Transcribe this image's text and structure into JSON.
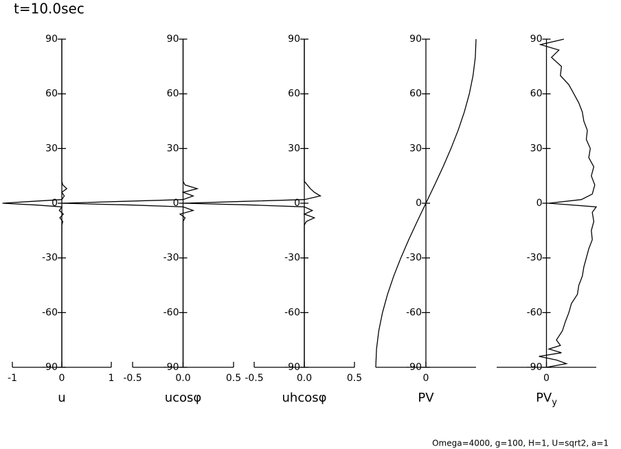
{
  "title": "t=10.0sec",
  "footnote": "Omega=4000, g=100, H=1, U=sqrt2, a=1",
  "chart_data": [
    {
      "type": "line",
      "xlabel": "u",
      "xlim": [
        -1,
        1
      ],
      "xticks": [
        -1,
        0,
        1
      ],
      "ylim": [
        -90,
        90
      ],
      "yticks": [
        -90,
        -60,
        -30,
        0,
        30,
        60,
        90
      ],
      "series": [
        {
          "color": "#000000",
          "lat": [
            90,
            30,
            12,
            10,
            8,
            6,
            4,
            2,
            1,
            0,
            -1,
            -2,
            -4,
            -6,
            -8,
            -10,
            -12,
            -30,
            -90
          ],
          "values": [
            0,
            0,
            0,
            0.02,
            0.1,
            0,
            0.05,
            0,
            -0.6,
            -1.2,
            -0.5,
            0,
            -0.05,
            0.03,
            -0.04,
            0.02,
            0,
            0,
            0
          ]
        }
      ]
    },
    {
      "type": "line",
      "xlabel": "ucosφ",
      "xlim": [
        -0.5,
        0.5
      ],
      "xticks": [
        -0.5,
        {
          "value": 0,
          "label": "0.0"
        },
        0.5
      ],
      "ylim": [
        -90,
        90
      ],
      "yticks": [
        -90,
        -60,
        -30,
        0,
        30,
        60,
        90
      ],
      "series": [
        {
          "color": "#000000",
          "lat": [
            90,
            30,
            12,
            10,
            8,
            6,
            4,
            2,
            1,
            0,
            -1,
            -2,
            -4,
            -6,
            -8,
            -10,
            -12,
            -30,
            -90
          ],
          "values": [
            0,
            0,
            0,
            0.02,
            0.14,
            0,
            0.1,
            0,
            -0.6,
            -1.2,
            -0.5,
            0,
            0.1,
            -0.03,
            0.02,
            0,
            0,
            0,
            0
          ]
        }
      ]
    },
    {
      "type": "line",
      "xlabel": "uhcosφ",
      "xlim": [
        -0.5,
        0.5
      ],
      "xticks": [
        -0.5,
        {
          "value": 0,
          "label": "0.0"
        },
        0.5
      ],
      "ylim": [
        -90,
        90
      ],
      "yticks": [
        -90,
        -60,
        -30,
        0,
        30,
        60,
        90
      ],
      "series": [
        {
          "color": "#000000",
          "lat": [
            90,
            30,
            12,
            10,
            8,
            6,
            4,
            2,
            1,
            0,
            -1,
            -2,
            -4,
            -6,
            -8,
            -10,
            -12,
            -30,
            -90
          ],
          "values": [
            0,
            0,
            0,
            0.03,
            0.06,
            0.1,
            0.16,
            0,
            -0.6,
            -1.2,
            -0.5,
            0,
            0.08,
            0,
            0.1,
            0.02,
            0,
            0,
            0
          ]
        }
      ]
    },
    {
      "type": "line",
      "xlabel": "PV",
      "xlim": [
        -1,
        1
      ],
      "xticks": [
        0
      ],
      "ylim": [
        -90,
        90
      ],
      "yticks": [
        -90,
        -60,
        -30,
        0,
        30,
        60,
        90
      ],
      "series": [
        {
          "color": "#000000",
          "lat": [
            90,
            80,
            70,
            60,
            50,
            40,
            30,
            20,
            10,
            0,
            -10,
            -20,
            -30,
            -40,
            -50,
            -60,
            -70,
            -80,
            -90
          ],
          "values": [
            1,
            0.985,
            0.94,
            0.866,
            0.766,
            0.643,
            0.5,
            0.342,
            0.174,
            0,
            -0.174,
            -0.342,
            -0.5,
            -0.643,
            -0.766,
            -0.866,
            -0.94,
            -0.985,
            -1
          ]
        }
      ]
    },
    {
      "type": "line",
      "xlabel": "PV",
      "xlabel_subscript": "y",
      "xlim": [
        -1,
        1
      ],
      "xticks": [
        0
      ],
      "ylim": [
        -90,
        90
      ],
      "yticks": [
        -90,
        -60,
        -30,
        0,
        30,
        60,
        90
      ],
      "series": [
        {
          "color": "#000000",
          "lat": [
            90,
            87,
            84,
            80,
            75,
            70,
            65,
            60,
            55,
            50,
            45,
            40,
            35,
            30,
            25,
            20,
            15,
            10,
            5,
            2,
            0,
            -2,
            -5,
            -10,
            -15,
            -20,
            -25,
            -30,
            -35,
            -40,
            -45,
            -50,
            -55,
            -60,
            -65,
            -70,
            -75,
            -78,
            -80,
            -82,
            -84,
            -86,
            -88,
            -90
          ],
          "values": [
            0.35,
            -0.12,
            0.25,
            0.1,
            0.3,
            0.28,
            0.45,
            0.55,
            0.65,
            0.72,
            0.75,
            0.82,
            0.8,
            0.88,
            0.85,
            0.95,
            0.9,
            0.97,
            0.92,
            0.7,
            0.05,
            1.0,
            0.92,
            0.95,
            0.9,
            0.92,
            0.85,
            0.8,
            0.75,
            0.72,
            0.65,
            0.62,
            0.5,
            0.45,
            0.38,
            0.32,
            0.2,
            0.28,
            0.05,
            0.3,
            -0.15,
            0.2,
            0.4,
            0
          ]
        }
      ]
    }
  ]
}
